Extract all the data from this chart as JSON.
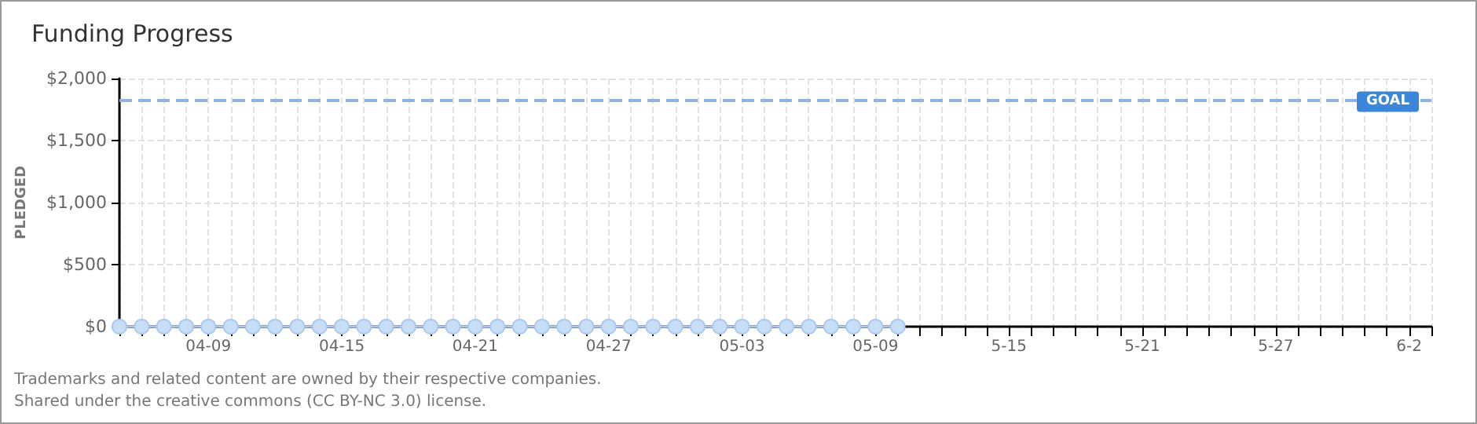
{
  "chart_data": {
    "type": "line",
    "title": "Funding Progress",
    "ylabel": "PLEDGED",
    "annotations": [
      "Trademarks and related content are owned by their respective companies.",
      "Shared under the creative commons (CC BY-NC 3.0) license."
    ],
    "categories": [
      null,
      null,
      null,
      null,
      "04-09",
      null,
      null,
      null,
      null,
      null,
      "04-15",
      null,
      null,
      null,
      null,
      null,
      "04-21",
      null,
      null,
      null,
      null,
      null,
      "04-27",
      null,
      null,
      null,
      null,
      null,
      "05-03",
      null,
      null,
      null,
      null,
      null,
      "05-09",
      null,
      null,
      null,
      null,
      null,
      "5-15",
      null,
      null,
      null,
      null,
      null,
      "5-21",
      null,
      null,
      null,
      null,
      null,
      "5-27",
      null,
      null,
      null,
      null,
      null,
      "6-2",
      null
    ],
    "series": [
      {
        "color": "#a9c9ee",
        "values": [
          0,
          0,
          0,
          0,
          0,
          0,
          0,
          0,
          0,
          0,
          0,
          0,
          0,
          0,
          0,
          0,
          0,
          0,
          0,
          0,
          0,
          0,
          0,
          0,
          0,
          0,
          0,
          0,
          0,
          0,
          0,
          0,
          0,
          0,
          0,
          0,
          null,
          null,
          null,
          null,
          null,
          null,
          null,
          null,
          null,
          null,
          null,
          null,
          null,
          null,
          null,
          null,
          null,
          null,
          null,
          null,
          null,
          null,
          null,
          null
        ]
      }
    ],
    "ylim": [
      0,
      2000
    ],
    "yticks": [
      {
        "value": 0,
        "label": "$0"
      },
      {
        "value": 500,
        "label": "$500"
      },
      {
        "value": 1000,
        "label": "$1,000"
      },
      {
        "value": 1500,
        "label": "$1,500"
      },
      {
        "value": 2000,
        "label": "$2,000"
      }
    ],
    "ref_lines": [
      {
        "axis": "y",
        "value": 1820,
        "label": "GOAL",
        "color": "#8fb4e0",
        "line_style": "dashed"
      }
    ],
    "grid": true,
    "marker": "circle"
  }
}
